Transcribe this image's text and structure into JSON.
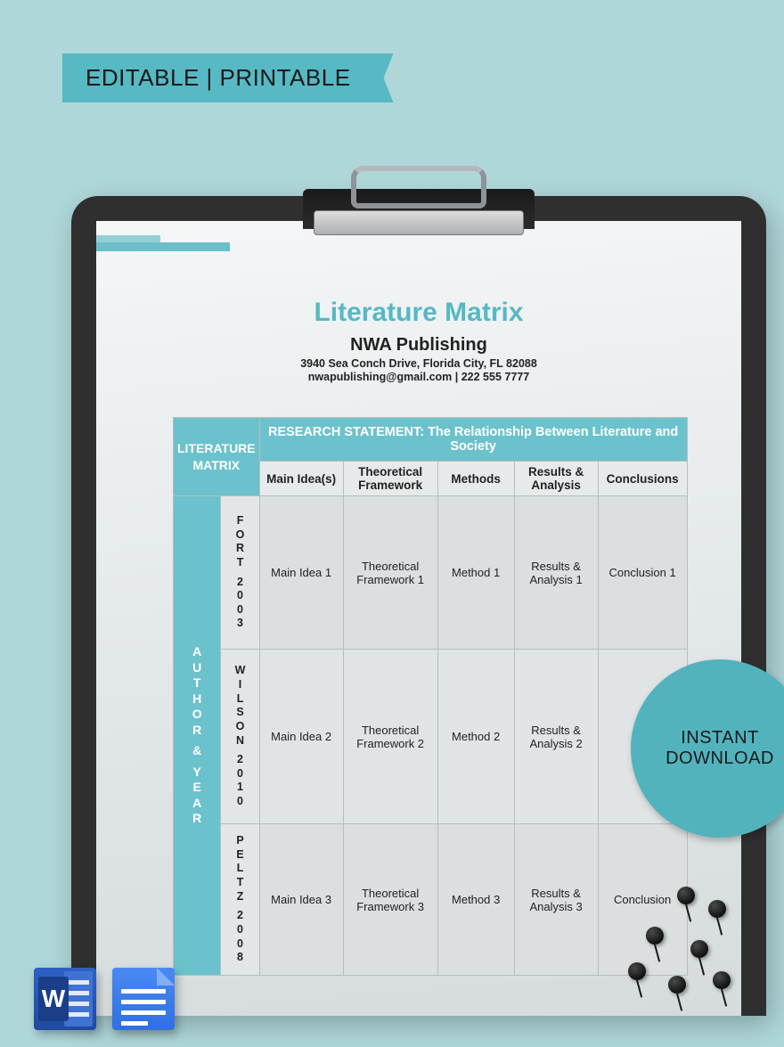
{
  "ribbon": {
    "text": "EDITABLE | PRINTABLE"
  },
  "badge": {
    "line1": "INSTANT",
    "line2": "DOWNLOAD"
  },
  "doc": {
    "title": "Literature Matrix",
    "company": "NWA Publishing",
    "address": "3940 Sea Conch Drive, Florida City, FL 82088",
    "contact": "nwapublishing@gmail.com | 222 555 7777"
  },
  "table": {
    "corner": "LITERATURE MATRIX",
    "statement": "RESEARCH STATEMENT: The Relationship Between Literature and Society",
    "columns": [
      "Main Idea(s)",
      "Theoretical Framework",
      "Methods",
      "Results & Analysis",
      "Conclusions"
    ],
    "rowHeaderLabel": "AUTHOR & YEAR",
    "rows": [
      {
        "author": "FORT 2003",
        "cells": [
          "Main Idea 1",
          "Theoretical Framework 1",
          "Method 1",
          "Results & Analysis 1",
          "Conclusion 1"
        ]
      },
      {
        "author": "WILSON 2010",
        "cells": [
          "Main Idea 2",
          "Theoretical Framework 2",
          "Method 2",
          "Results & Analysis 2",
          ""
        ]
      },
      {
        "author": "PELTZ 2008",
        "cells": [
          "Main Idea 3",
          "Theoretical Framework 3",
          "Method 3",
          "Results & Analysis 3",
          "Conclusion"
        ]
      }
    ]
  },
  "apps": {
    "word": "W",
    "docs": "Docs"
  },
  "style": {
    "bg": "#afd7da",
    "accent": "#56b9c4",
    "tableHeader": "#6cc2cc",
    "titleColor": "#57b8c2",
    "rowA": "#dbdfe0",
    "rowB": "#e0e4e5"
  }
}
